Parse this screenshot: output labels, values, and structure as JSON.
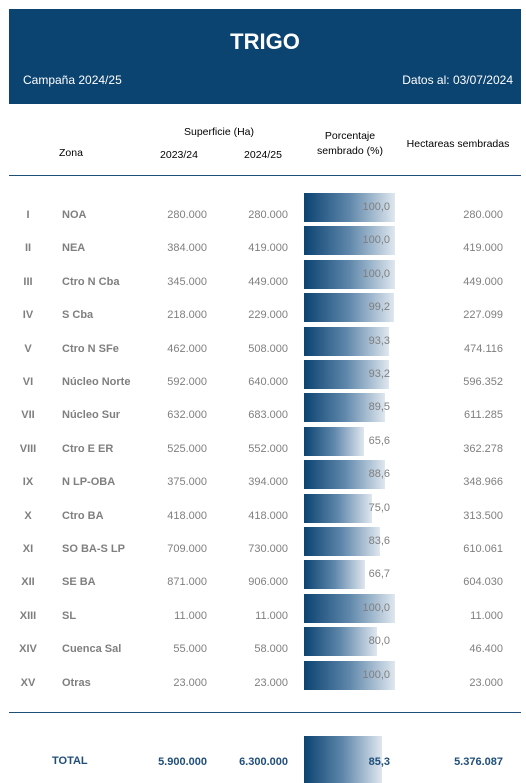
{
  "header": {
    "title": "TRIGO",
    "campaign": "Campaña 2024/25",
    "date": "Datos al: 03/07/2024"
  },
  "columns": {
    "zona": "Zona",
    "superficie": "Superficie (Ha)",
    "y2023": "2023/24",
    "y2024": "2024/25",
    "porcentaje_l1": "Porcentaje",
    "porcentaje_l2": "sembrado (%)",
    "hectareas": "Hectareas sembradas"
  },
  "rows": [
    {
      "num": "I",
      "zona": "NOA",
      "s2023": "280.000",
      "s2024": "280.000",
      "pct": 100.0,
      "pct_label": "100,0",
      "ha": "280.000"
    },
    {
      "num": "II",
      "zona": "NEA",
      "s2023": "384.000",
      "s2024": "419.000",
      "pct": 100.0,
      "pct_label": "100,0",
      "ha": "419.000"
    },
    {
      "num": "III",
      "zona": "Ctro N Cba",
      "s2023": "345.000",
      "s2024": "449.000",
      "pct": 100.0,
      "pct_label": "100,0",
      "ha": "449.000"
    },
    {
      "num": "IV",
      "zona": "S Cba",
      "s2023": "218.000",
      "s2024": "229.000",
      "pct": 99.2,
      "pct_label": "99,2",
      "ha": "227.099"
    },
    {
      "num": "V",
      "zona": "Ctro N SFe",
      "s2023": "462.000",
      "s2024": "508.000",
      "pct": 93.3,
      "pct_label": "93,3",
      "ha": "474.116"
    },
    {
      "num": "VI",
      "zona": "Núcleo Norte",
      "s2023": "592.000",
      "s2024": "640.000",
      "pct": 93.2,
      "pct_label": "93,2",
      "ha": "596.352"
    },
    {
      "num": "VII",
      "zona": "Núcleo Sur",
      "s2023": "632.000",
      "s2024": "683.000",
      "pct": 89.5,
      "pct_label": "89,5",
      "ha": "611.285"
    },
    {
      "num": "VIII",
      "zona": "Ctro E ER",
      "s2023": "525.000",
      "s2024": "552.000",
      "pct": 65.6,
      "pct_label": "65,6",
      "ha": "362.278"
    },
    {
      "num": "IX",
      "zona": "N LP-OBA",
      "s2023": "375.000",
      "s2024": "394.000",
      "pct": 88.6,
      "pct_label": "88,6",
      "ha": "348.966"
    },
    {
      "num": "X",
      "zona": "Ctro BA",
      "s2023": "418.000",
      "s2024": "418.000",
      "pct": 75.0,
      "pct_label": "75,0",
      "ha": "313.500"
    },
    {
      "num": "XI",
      "zona": "SO BA-S LP",
      "s2023": "709.000",
      "s2024": "730.000",
      "pct": 83.6,
      "pct_label": "83,6",
      "ha": "610.061"
    },
    {
      "num": "XII",
      "zona": "SE BA",
      "s2023": "871.000",
      "s2024": "906.000",
      "pct": 66.7,
      "pct_label": "66,7",
      "ha": "604.030"
    },
    {
      "num": "XIII",
      "zona": "SL",
      "s2023": "11.000",
      "s2024": "11.000",
      "pct": 100.0,
      "pct_label": "100,0",
      "ha": "11.000"
    },
    {
      "num": "XIV",
      "zona": "Cuenca Sal",
      "s2023": "55.000",
      "s2024": "58.000",
      "pct": 80.0,
      "pct_label": "80,0",
      "ha": "46.400"
    },
    {
      "num": "XV",
      "zona": "Otras",
      "s2023": "23.000",
      "s2024": "23.000",
      "pct": 100.0,
      "pct_label": "100,0",
      "ha": "23.000"
    }
  ],
  "total": {
    "label": "TOTAL",
    "s2023": "5.900.000",
    "s2024": "6.300.000",
    "pct": 85.3,
    "pct_label": "85,3",
    "ha": "5.376.087"
  }
}
